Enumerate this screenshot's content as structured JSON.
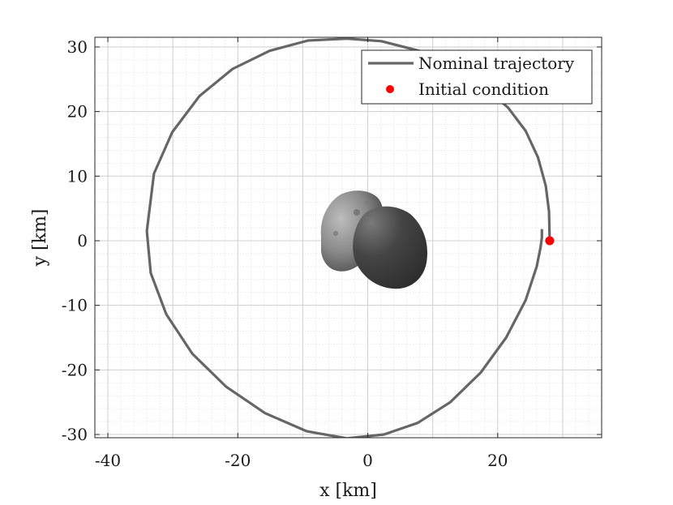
{
  "chart_data": {
    "type": "line",
    "xlabel": "x [km]",
    "ylabel": "y [km]",
    "xlim": [
      -42,
      36
    ],
    "ylim": [
      -30.5,
      31.5
    ],
    "x_ticks": [
      -40,
      -20,
      0,
      20
    ],
    "y_ticks": [
      -30,
      -20,
      -10,
      0,
      10,
      20,
      30
    ],
    "x_tick_labels": [
      "-40",
      "-20",
      "0",
      "20"
    ],
    "y_tick_labels": [
      "-30",
      "-20",
      "-10",
      "0",
      "10",
      "20",
      "30"
    ],
    "grid": true,
    "minor_grid": true,
    "legend_position": "top-right",
    "series": [
      {
        "name": "Nominal trajectory",
        "kind": "line",
        "color": "#666666",
        "x": [
          28.0,
          27.9,
          27.4,
          26.2,
          24.3,
          21.6,
          17.9,
          13.3,
          7.9,
          2.1,
          -3.2,
          -9.2,
          -15.1,
          -20.8,
          -25.9,
          -30.1,
          -32.9,
          -34.0,
          -33.4,
          -31.0,
          -27.0,
          -21.8,
          -15.8,
          -9.4,
          -3.2,
          2.5,
          7.7,
          12.7,
          17.4,
          21.3,
          24.3,
          26.0,
          26.6,
          26.8,
          26.8
        ],
        "y": [
          0.0,
          4.5,
          8.5,
          12.9,
          17.0,
          20.6,
          23.8,
          26.8,
          29.4,
          30.9,
          31.3,
          31.0,
          29.4,
          26.6,
          22.4,
          16.8,
          10.4,
          1.5,
          -5.0,
          -11.4,
          -17.5,
          -22.6,
          -26.7,
          -29.5,
          -30.6,
          -30.0,
          -28.2,
          -25.0,
          -20.4,
          -15.0,
          -9.2,
          -4.0,
          -1.0,
          0.5,
          1.8
        ]
      },
      {
        "name": "Initial condition",
        "kind": "marker",
        "color": "#ff0000",
        "x": [
          28.0
        ],
        "y": [
          0.0
        ]
      }
    ]
  }
}
